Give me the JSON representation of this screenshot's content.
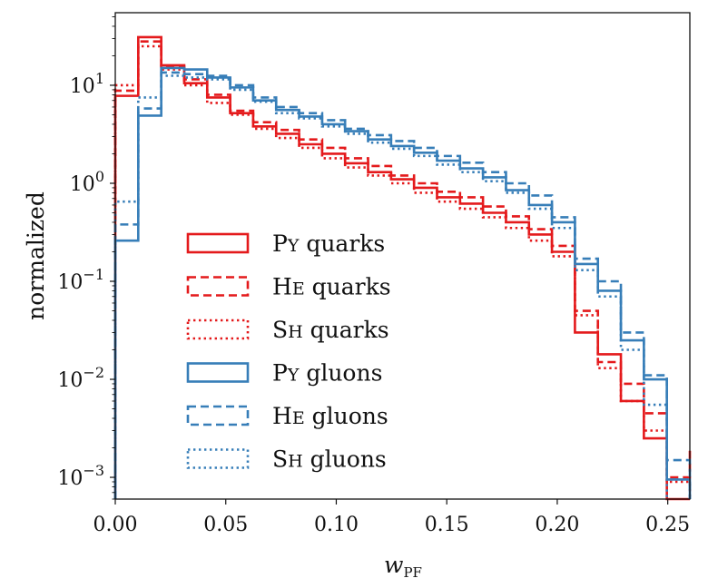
{
  "chart_data": {
    "type": "line",
    "drawstyle": "step-histogram",
    "xlabel_main": "w",
    "xlabel_sub": "PF",
    "ylabel": "normalized",
    "yscale": "log",
    "xlim": [
      0.0,
      0.26
    ],
    "ylim": [
      0.0006,
      55
    ],
    "x_ticks": [
      0.0,
      0.05,
      0.1,
      0.15,
      0.2,
      0.25
    ],
    "x_tick_labels": [
      "0.00",
      "0.05",
      "0.10",
      "0.15",
      "0.20",
      "0.25"
    ],
    "y_ticks": [
      {
        "value": 0.001,
        "base": "10",
        "exp": "−3"
      },
      {
        "value": 0.01,
        "base": "10",
        "exp": "−2"
      },
      {
        "value": 0.1,
        "base": "10",
        "exp": "−1"
      },
      {
        "value": 1,
        "base": "10",
        "exp": "0"
      },
      {
        "value": 10,
        "base": "10",
        "exp": "1"
      }
    ],
    "bin_edges": [
      0.0,
      0.0104,
      0.0208,
      0.0312,
      0.0416,
      0.052,
      0.0624,
      0.0728,
      0.0832,
      0.0936,
      0.104,
      0.1144,
      0.1248,
      0.1352,
      0.1456,
      0.156,
      0.1664,
      0.1768,
      0.1872,
      0.1976,
      0.208,
      0.2184,
      0.2288,
      0.2392,
      0.2496,
      0.26
    ],
    "series": [
      {
        "name_cap": "P",
        "name_sc": "Y",
        "name_rest": " quarks",
        "color": "#e41a1c",
        "dash": "solid",
        "values": [
          7.8,
          31,
          16,
          10.5,
          7.5,
          5.2,
          3.8,
          3.2,
          2.5,
          2.0,
          1.6,
          1.3,
          1.1,
          0.9,
          0.72,
          0.62,
          0.5,
          0.4,
          0.3,
          0.2,
          0.03,
          0.018,
          0.006,
          0.0025,
          0.00045,
          null
        ]
      },
      {
        "name_cap": "H",
        "name_sc": "E",
        "name_rest": " quarks",
        "color": "#e41a1c",
        "dash": "dashed",
        "values": [
          8.8,
          28,
          15.5,
          11.5,
          8.0,
          5.5,
          4.2,
          3.5,
          2.8,
          2.3,
          1.8,
          1.5,
          1.2,
          1.0,
          0.82,
          0.72,
          0.58,
          0.46,
          0.34,
          0.23,
          0.05,
          0.015,
          0.009,
          0.0045,
          0.001,
          0.0019
        ]
      },
      {
        "name_cap": "S",
        "name_sc": "H",
        "name_rest": " quarks",
        "color": "#e41a1c",
        "dash": "dotted",
        "values": [
          10.0,
          25,
          14.5,
          10.0,
          6.6,
          5.0,
          3.6,
          2.9,
          2.3,
          1.8,
          1.45,
          1.2,
          1.0,
          0.8,
          0.65,
          0.55,
          0.45,
          0.35,
          0.26,
          0.18,
          0.045,
          0.013,
          0.006,
          0.003,
          0.0009,
          null
        ]
      },
      {
        "name_cap": "P",
        "name_sc": "Y",
        "name_rest": " gluons",
        "color": "#377eb8",
        "dash": "solid",
        "values": [
          0.26,
          4.9,
          15.0,
          14.5,
          12.0,
          9.5,
          7.0,
          5.6,
          4.8,
          4.0,
          3.4,
          2.8,
          2.4,
          2.05,
          1.7,
          1.42,
          1.15,
          0.85,
          0.6,
          0.4,
          0.15,
          0.08,
          0.025,
          0.01,
          0.00095,
          null
        ]
      },
      {
        "name_cap": "H",
        "name_sc": "E",
        "name_rest": " gluons",
        "color": "#377eb8",
        "dash": "dashed",
        "values": [
          0.38,
          5.8,
          13.5,
          13.0,
          12.5,
          10.0,
          7.5,
          6.0,
          5.2,
          4.4,
          3.6,
          3.1,
          2.7,
          2.3,
          1.9,
          1.62,
          1.3,
          1.0,
          0.75,
          0.45,
          0.17,
          0.1,
          0.03,
          0.011,
          0.0015,
          null
        ]
      },
      {
        "name_cap": "S",
        "name_sc": "H",
        "name_rest": " gluons",
        "color": "#377eb8",
        "dash": "dotted",
        "values": [
          0.65,
          7.5,
          12.5,
          12.0,
          11.5,
          9.0,
          6.8,
          5.2,
          4.6,
          3.8,
          3.2,
          2.6,
          2.25,
          1.9,
          1.55,
          1.3,
          1.05,
          0.8,
          0.55,
          0.35,
          0.13,
          0.07,
          0.02,
          0.0055,
          null,
          null
        ]
      }
    ]
  }
}
